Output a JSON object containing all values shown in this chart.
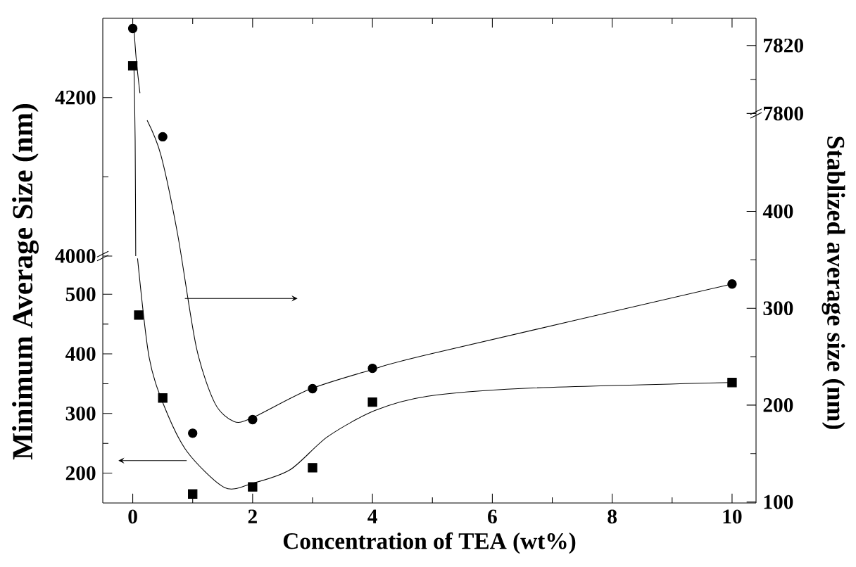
{
  "chart_data": [
    {
      "type": "scatter",
      "xlim": [
        -0.5,
        10.4
      ],
      "xticks": [
        0,
        2,
        4,
        6,
        8,
        10
      ],
      "ylim": [
        4000,
        4300
      ],
      "yticks": [
        4000,
        4200
      ],
      "tick_labels": "y",
      "series": [
        {
          "marker": "square",
          "color": "#000000",
          "x": [
            0
          ],
          "values": [
            4240
          ]
        },
        {
          "type": "line",
          "marker": "none",
          "line_style": "solid",
          "color": "#000000",
          "x": [
            0.02,
            0.04,
            0.05
          ],
          "values": [
            4240,
            4146,
            4000
          ]
        }
      ]
    },
    {
      "type": "scatter",
      "xlabel": "Concentration of TEA (wt%)",
      "ylabel": "Minimum Average Size (nm)",
      "xlim": [
        -0.5,
        10.4
      ],
      "xticks": [
        0,
        2,
        4,
        6,
        8,
        10
      ],
      "ylim": [
        150,
        564
      ],
      "yticks": [
        200,
        300,
        400,
        500
      ],
      "series": [
        {
          "marker": "square",
          "color": "#000000",
          "x": [
            0.1,
            0.5,
            1,
            2,
            3,
            4,
            10
          ],
          "values": [
            465,
            326,
            165,
            177,
            209,
            319,
            352
          ]
        },
        {
          "type": "line",
          "marker": "none",
          "line_style": "solid",
          "color": "#000000",
          "x": [
            0.08,
            0.27,
            0.51,
            0.9,
            1.53,
            2,
            2.63,
            3.25,
            4.04,
            4.92,
            6.49,
            10
          ],
          "values": [
            560,
            396,
            316,
            237,
            176,
            183,
            206,
            261,
            305,
            329,
            342,
            352
          ]
        }
      ]
    },
    {
      "type": "scatter",
      "xlim": [
        -0.5,
        10.4
      ],
      "xticks": [
        0,
        2,
        4,
        6,
        8,
        10
      ],
      "y2lim": [
        7800,
        7828
      ],
      "y2ticks": [
        7800,
        7820
      ],
      "tick_labels": "y",
      "series": [
        {
          "axis": "y2",
          "marker": "circle",
          "color": "#000000",
          "x": [
            0
          ],
          "values": [
            7825
          ]
        },
        {
          "type": "line",
          "axis": "y2",
          "marker": "none",
          "line_style": "solid",
          "color": "#000000",
          "x": [
            0.02,
            0.06,
            0.12
          ],
          "values": [
            7825,
            7815.6,
            7806
          ]
        }
      ]
    },
    {
      "type": "scatter",
      "y2label": "Stablized average size (nm)",
      "xlim": [
        -0.5,
        10.4
      ],
      "xticks": [
        0,
        2,
        4,
        6,
        8,
        10
      ],
      "y2lim": [
        99,
        501
      ],
      "y2ticks": [
        100,
        200,
        300,
        400
      ],
      "tick_labels": "y",
      "series": [
        {
          "axis": "y2",
          "marker": "circle",
          "color": "#000000",
          "x": [
            0.5,
            1,
            2,
            3,
            4,
            10
          ],
          "values": [
            477,
            171,
            185,
            217,
            238,
            325
          ]
        },
        {
          "type": "line",
          "axis": "y2",
          "marker": "none",
          "line_style": "solid",
          "color": "#000000",
          "x": [
            0.24,
            0.47,
            0.75,
            1.06,
            1.37,
            1.69,
            2,
            2.94,
            3.96,
            4.91,
            10
          ],
          "values": [
            494,
            458,
            376,
            260,
            202,
            183,
            187,
            216,
            236,
            252,
            325
          ]
        }
      ]
    }
  ]
}
